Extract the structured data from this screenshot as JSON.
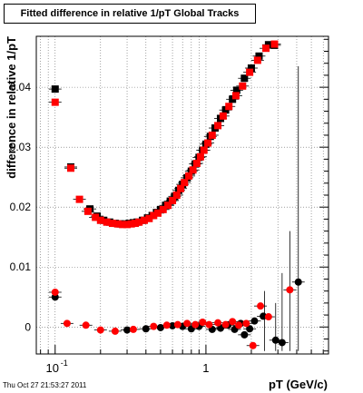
{
  "chart_data": {
    "type": "scatter",
    "title": "Fitted difference in relative 1/pT  Global Tracks",
    "xlabel": "pT (GeV/c)",
    "ylabel": "difference in relative 1/pT",
    "x_scale": "log",
    "xlim": [
      0.075,
      6.5
    ],
    "ylim": [
      -0.0045,
      0.0485
    ],
    "x_tick_labels": [
      {
        "value": 0.1,
        "label": "10",
        "exp": "-1"
      },
      {
        "value": 1,
        "label": "1",
        "exp": ""
      }
    ],
    "y_ticks": [
      0,
      0.01,
      0.02,
      0.03,
      0.04
    ],
    "y_tick_labels": [
      "0",
      "0.01",
      "0.02",
      "0.03",
      "0.04"
    ],
    "grid": true,
    "legend": "none",
    "series": [
      {
        "color": "#000000",
        "marker": "square",
        "points": [
          [
            0.1,
            0.0397
          ],
          [
            0.127,
            0.0267
          ],
          [
            0.17,
            0.0197
          ],
          [
            0.19,
            0.0185
          ],
          [
            0.21,
            0.0178
          ],
          [
            0.23,
            0.0175
          ],
          [
            0.25,
            0.0173
          ],
          [
            0.27,
            0.0172
          ],
          [
            0.29,
            0.0172
          ],
          [
            0.31,
            0.0173
          ],
          [
            0.33,
            0.0174
          ],
          [
            0.35,
            0.0175
          ],
          [
            0.38,
            0.0178
          ],
          [
            0.41,
            0.0182
          ],
          [
            0.44,
            0.0186
          ],
          [
            0.47,
            0.0191
          ],
          [
            0.5,
            0.0196
          ],
          [
            0.54,
            0.0203
          ],
          [
            0.58,
            0.021
          ],
          [
            0.62,
            0.0218
          ],
          [
            0.66,
            0.0228
          ],
          [
            0.7,
            0.0238
          ],
          [
            0.75,
            0.0249
          ],
          [
            0.8,
            0.026
          ],
          [
            0.85,
            0.0272
          ],
          [
            0.9,
            0.0283
          ],
          [
            0.95,
            0.0295
          ],
          [
            1.0,
            0.0305
          ],
          [
            1.07,
            0.0318
          ],
          [
            1.15,
            0.0332
          ],
          [
            1.25,
            0.0348
          ],
          [
            1.35,
            0.0362
          ],
          [
            1.5,
            0.038
          ],
          [
            1.6,
            0.0395
          ],
          [
            1.8,
            0.0415
          ],
          [
            2.0,
            0.0432
          ],
          [
            2.25,
            0.0452
          ],
          [
            2.6,
            0.0471
          ],
          [
            2.85,
            0.047
          ]
        ]
      },
      {
        "color": "#ff0000",
        "marker": "square",
        "points": [
          [
            0.1,
            0.0375
          ],
          [
            0.127,
            0.0265
          ],
          [
            0.145,
            0.0213
          ],
          [
            0.165,
            0.0193
          ],
          [
            0.185,
            0.0183
          ],
          [
            0.2,
            0.0178
          ],
          [
            0.22,
            0.0175
          ],
          [
            0.24,
            0.0173
          ],
          [
            0.26,
            0.0172
          ],
          [
            0.28,
            0.0171
          ],
          [
            0.3,
            0.0171
          ],
          [
            0.32,
            0.0172
          ],
          [
            0.34,
            0.0173
          ],
          [
            0.36,
            0.0175
          ],
          [
            0.39,
            0.0178
          ],
          [
            0.42,
            0.0181
          ],
          [
            0.45,
            0.0186
          ],
          [
            0.48,
            0.019
          ],
          [
            0.52,
            0.0196
          ],
          [
            0.56,
            0.0203
          ],
          [
            0.6,
            0.0211
          ],
          [
            0.64,
            0.022
          ],
          [
            0.68,
            0.0231
          ],
          [
            0.72,
            0.0241
          ],
          [
            0.77,
            0.0252
          ],
          [
            0.82,
            0.0262
          ],
          [
            0.87,
            0.0273
          ],
          [
            0.92,
            0.0284
          ],
          [
            0.97,
            0.0295
          ],
          [
            1.03,
            0.0307
          ],
          [
            1.1,
            0.032
          ],
          [
            1.2,
            0.0336
          ],
          [
            1.3,
            0.0352
          ],
          [
            1.42,
            0.0368
          ],
          [
            1.58,
            0.0386
          ],
          [
            1.75,
            0.0402
          ],
          [
            1.95,
            0.0425
          ],
          [
            2.2,
            0.0445
          ],
          [
            2.5,
            0.0465
          ],
          [
            2.85,
            0.0472
          ]
        ]
      },
      {
        "color": "#000000",
        "marker": "circle",
        "points": [
          [
            0.1,
            0.005
          ],
          [
            0.3,
            -0.0005
          ],
          [
            0.4,
            -0.0003
          ],
          [
            0.5,
            -0.0001
          ],
          [
            0.6,
            0.0002
          ],
          [
            0.7,
            0.0001
          ],
          [
            0.8,
            -0.0003
          ],
          [
            0.9,
            0.0001
          ],
          [
            1.1,
            -0.0004
          ],
          [
            1.25,
            -0.0002
          ],
          [
            1.4,
            0.0003
          ],
          [
            1.55,
            -0.0004
          ],
          [
            1.7,
            0.0006
          ],
          [
            1.8,
            -0.0013
          ],
          [
            1.95,
            -0.0003
          ],
          [
            2.1,
            0.001
          ],
          [
            2.4,
            0.0018
          ],
          [
            2.9,
            -0.0022
          ],
          [
            3.2,
            -0.0026
          ],
          [
            4.1,
            0.0075
          ]
        ]
      },
      {
        "color": "#ff0000",
        "marker": "circle",
        "points": [
          [
            0.1,
            0.0058
          ],
          [
            0.12,
            0.0006
          ],
          [
            0.16,
            0.0003
          ],
          [
            0.2,
            -0.0005
          ],
          [
            0.25,
            -0.0007
          ],
          [
            0.33,
            -0.0004
          ],
          [
            0.45,
            0.0001
          ],
          [
            0.55,
            0.0003
          ],
          [
            0.65,
            0.0004
          ],
          [
            0.75,
            0.0006
          ],
          [
            0.85,
            0.0004
          ],
          [
            0.95,
            0.0008
          ],
          [
            1.05,
            0.0004
          ],
          [
            1.2,
            0.0007
          ],
          [
            1.35,
            0.0004
          ],
          [
            1.5,
            0.0009
          ],
          [
            1.65,
            0.0003
          ],
          [
            1.85,
            0.0006
          ],
          [
            2.05,
            -0.0031
          ],
          [
            2.3,
            0.0035
          ],
          [
            2.6,
            0.0017
          ],
          [
            3.6,
            0.0062
          ]
        ]
      }
    ],
    "error_bars": [
      {
        "x": 2.45,
        "y_low": -0.004,
        "y_high": 0.006
      },
      {
        "x": 2.9,
        "y_low": -0.004,
        "y_high": 0.004
      },
      {
        "x": 3.2,
        "y_low": -0.004,
        "y_high": 0.009
      },
      {
        "x": 3.6,
        "y_low": -0.004,
        "y_high": 0.016
      },
      {
        "x": 4.1,
        "y_low": -0.004,
        "y_high": 0.0435
      }
    ]
  },
  "footer": {
    "timestamp": "Thu Oct 27 21:53:27 2011"
  }
}
